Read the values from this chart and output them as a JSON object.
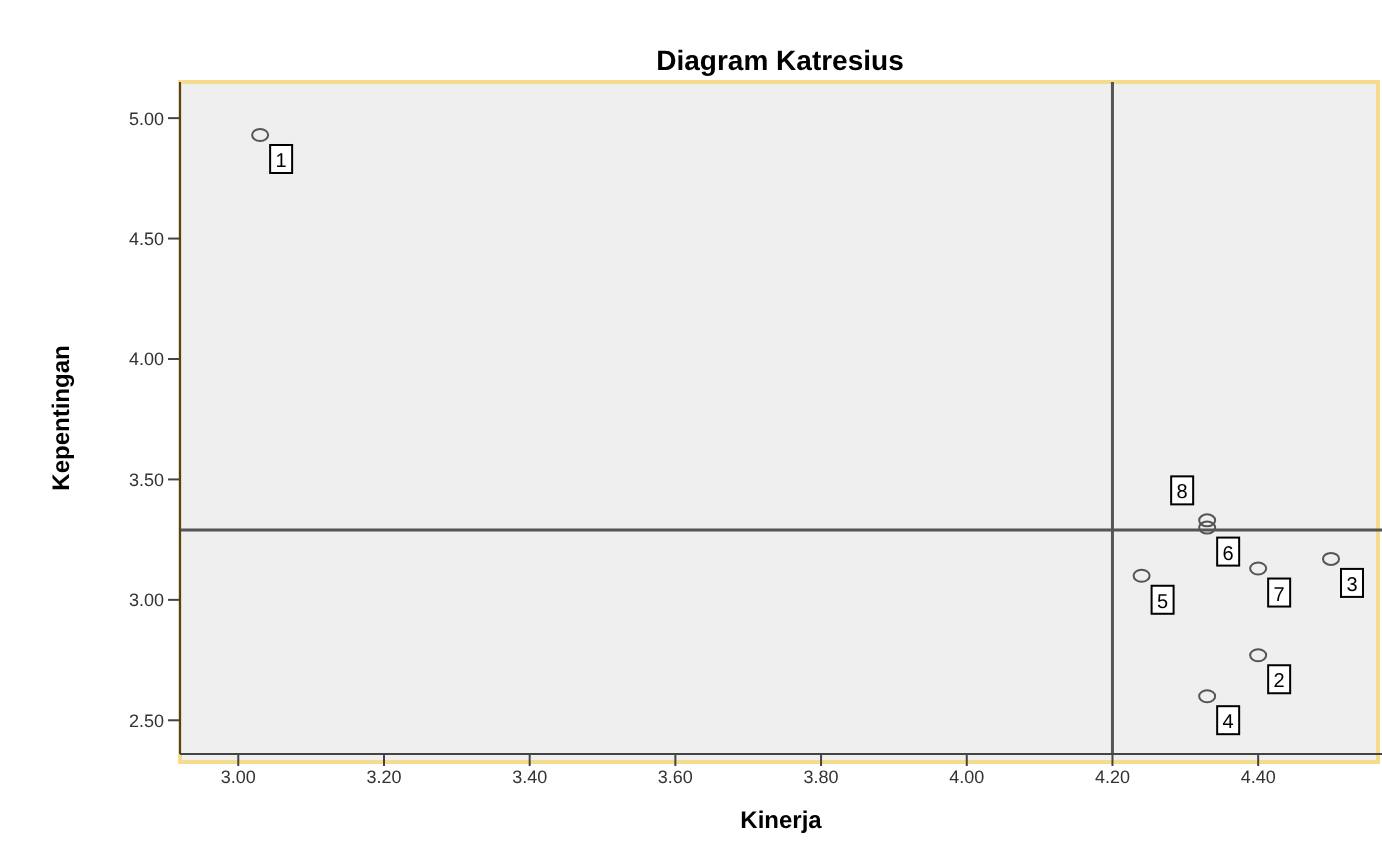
{
  "chart_data": {
    "type": "scatter",
    "title": "Diagram Katresius",
    "xlabel": "Kinerja",
    "ylabel": "Kepentingan",
    "x": [
      3.03,
      4.4,
      4.5,
      4.33,
      4.24,
      4.33,
      4.4,
      4.33
    ],
    "values": [
      4.93,
      2.77,
      3.17,
      2.6,
      3.1,
      3.3,
      3.13,
      3.33
    ],
    "color": "#555555",
    "marker": "circle",
    "xlim": [
      2.92,
      4.57
    ],
    "xticks": [
      {
        "value": 3.0,
        "label": "3.00"
      },
      {
        "value": 3.2,
        "label": "3.20"
      },
      {
        "value": 3.4,
        "label": "3.40"
      },
      {
        "value": 3.6,
        "label": "3.60"
      },
      {
        "value": 3.8,
        "label": "3.80"
      },
      {
        "value": 4.0,
        "label": "4.00"
      },
      {
        "value": 4.2,
        "label": "4.20"
      },
      {
        "value": 4.4,
        "label": "4.40"
      }
    ],
    "ylim": [
      2.36,
      5.15
    ],
    "yticks": [
      {
        "value": 2.5,
        "label": "2.50"
      },
      {
        "value": 3.0,
        "label": "3.00"
      },
      {
        "value": 3.5,
        "label": "3.50"
      },
      {
        "value": 4.0,
        "label": "4.00"
      },
      {
        "value": 4.5,
        "label": "4.50"
      },
      {
        "value": 5.0,
        "label": "5.00"
      }
    ],
    "ref_lines": [
      {
        "axis": "x",
        "value": 4.2,
        "color": "#555555"
      },
      {
        "axis": "y",
        "value": 3.29,
        "color": "#555555"
      }
    ],
    "annotations": [
      {
        "text": "1",
        "x": 3.03,
        "y": 4.93
      },
      {
        "text": "2",
        "x": 4.4,
        "y": 2.77
      },
      {
        "text": "3",
        "x": 4.5,
        "y": 3.17
      },
      {
        "text": "4",
        "x": 4.33,
        "y": 2.6
      },
      {
        "text": "5",
        "x": 4.24,
        "y": 3.1
      },
      {
        "text": "6",
        "x": 4.33,
        "y": 3.3
      },
      {
        "text": "7",
        "x": 4.4,
        "y": 3.13
      },
      {
        "text": "8",
        "x": 4.33,
        "y": 3.33
      }
    ],
    "grid": false,
    "legend": false
  }
}
